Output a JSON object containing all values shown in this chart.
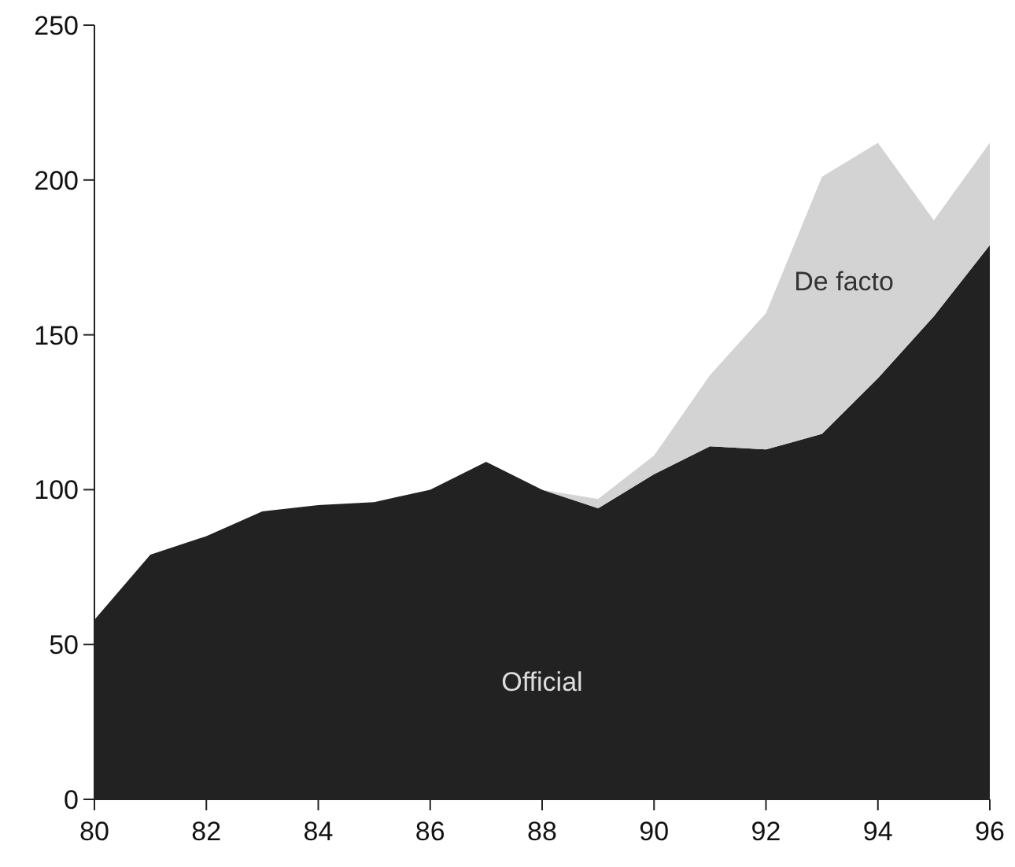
{
  "chart_data": {
    "type": "area",
    "stacked": true,
    "x": [
      80,
      81,
      82,
      83,
      84,
      85,
      86,
      87,
      88,
      89,
      90,
      91,
      92,
      93,
      94,
      95,
      96
    ],
    "series": [
      {
        "name": "Official",
        "color": "#222222",
        "values": [
          58,
          79,
          85,
          93,
          95,
          96,
          100,
          109,
          100,
          94,
          105,
          114,
          113,
          118,
          136,
          156,
          179
        ]
      },
      {
        "name": "De facto",
        "color": "#d3d3d3",
        "values": [
          null,
          null,
          null,
          null,
          null,
          null,
          null,
          null,
          0,
          3,
          6,
          23,
          44,
          83,
          76,
          31,
          33
        ]
      }
    ],
    "xlim": [
      80,
      96
    ],
    "xticks": [
      80,
      82,
      84,
      86,
      88,
      90,
      92,
      94,
      96
    ],
    "ylim": [
      0,
      250
    ],
    "yticks": [
      0,
      50,
      100,
      150,
      200,
      250
    ],
    "grid": false
  }
}
